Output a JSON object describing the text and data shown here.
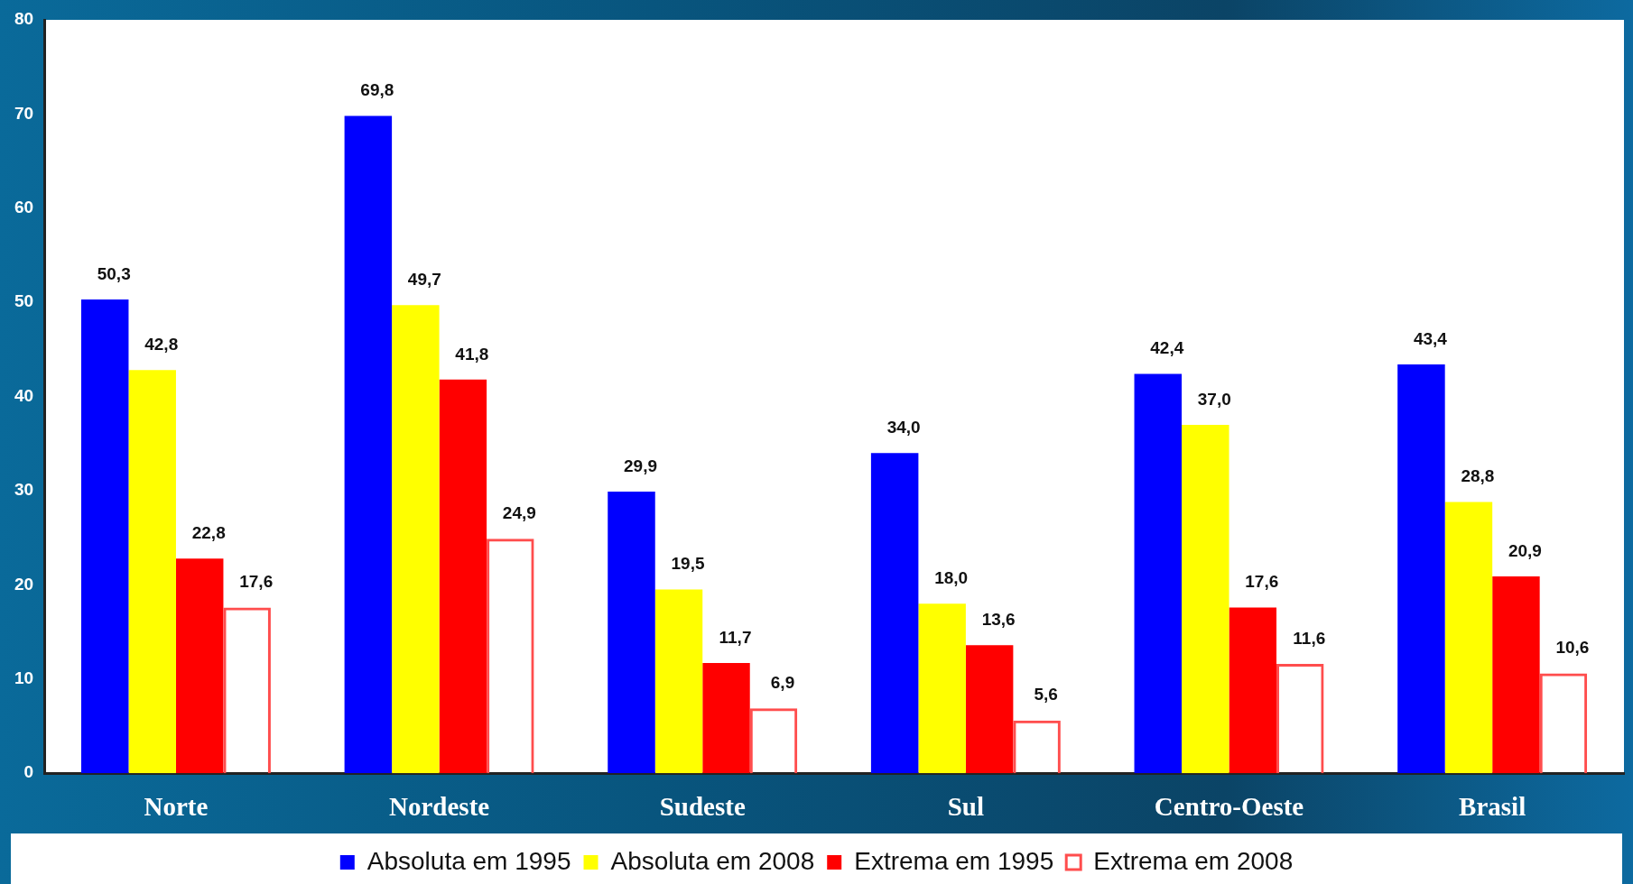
{
  "chart_data": {
    "type": "bar",
    "categories": [
      "Norte",
      "Nordeste",
      "Sudeste",
      "Sul",
      "Centro-Oeste",
      "Brasil"
    ],
    "series": [
      {
        "name": "Absoluta em 1995",
        "color": "#0000ff",
        "values": [
          50.3,
          69.8,
          29.9,
          34.0,
          42.4,
          43.4
        ],
        "value_labels": [
          "50,3",
          "69,8",
          "29,9",
          "34,0",
          "42,4",
          "43,4"
        ]
      },
      {
        "name": "Absoluta em 2008",
        "color": "#ffff00",
        "values": [
          42.8,
          49.7,
          19.5,
          18.0,
          37.0,
          28.8
        ],
        "value_labels": [
          "42,8",
          "49,7",
          "19,5",
          "18,0",
          "37,0",
          "28,8"
        ]
      },
      {
        "name": "Extrema em 1995",
        "color": "#ff0000",
        "values": [
          22.8,
          41.8,
          11.7,
          13.6,
          17.6,
          20.9
        ],
        "value_labels": [
          "22,8",
          "41,8",
          "11,7",
          "13,6",
          "17,6",
          "20,9"
        ]
      },
      {
        "name": "Extrema em 2008",
        "color": "#ff4d4d",
        "values": [
          17.6,
          24.9,
          6.9,
          5.6,
          11.6,
          10.6
        ],
        "value_labels": [
          "17,6",
          "24,9",
          "6,9",
          "5,6",
          "11,6",
          "10,6"
        ]
      }
    ],
    "ylim": [
      0,
      80
    ],
    "yticks": [
      0,
      10,
      20,
      30,
      40,
      50,
      60,
      70,
      80
    ],
    "grid": false,
    "legend": "bottom"
  }
}
